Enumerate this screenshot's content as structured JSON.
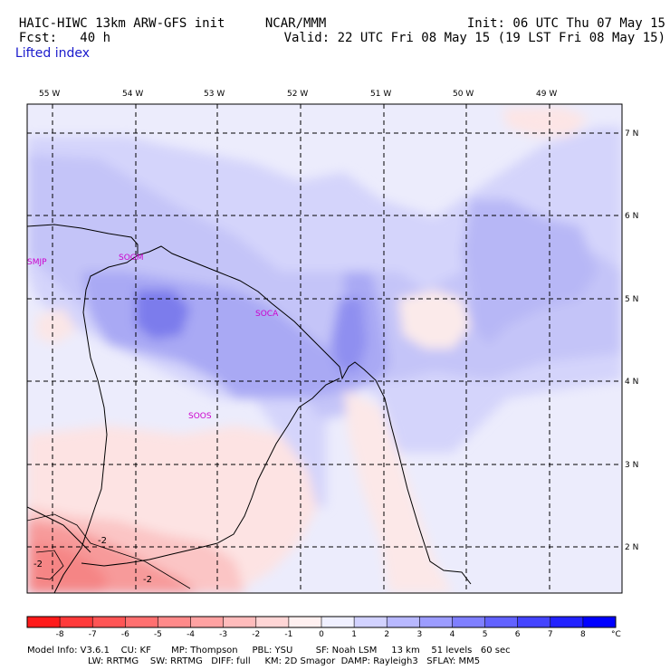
{
  "header": {
    "model_title": "HAIC-HIWC 13km ARW-GFS init",
    "org": "NCAR/MMM",
    "init": "Init: 06 UTC Thu 07 May 15",
    "fcst": "Fcst:   40 h",
    "valid": "Valid: 22 UTC Fri 08 May 15 (19 LST Fri 08 May 15)",
    "field": "Lifted index"
  },
  "map": {
    "lon_labels": [
      "55 W",
      "54 W",
      "53 W",
      "52 W",
      "51 W",
      "50 W",
      "49 W"
    ],
    "lat_labels": [
      "7 N",
      "6 N",
      "5 N",
      "4 N",
      "3 N",
      "2 N"
    ],
    "stations": [
      "SMJP",
      "SOGM",
      "SOCA",
      "SOOS"
    ],
    "contour_labels": [
      "-2",
      "-2",
      "-2"
    ]
  },
  "colorbar": {
    "ticks": [
      "-8",
      "-7",
      "-6",
      "-5",
      "-4",
      "-3",
      "-2",
      "-1",
      "0",
      "1",
      "2",
      "3",
      "4",
      "5",
      "6",
      "7",
      "8"
    ],
    "unit": "°C",
    "colors": [
      "#ff1a1a",
      "#ff3a3a",
      "#ff5555",
      "#ff7070",
      "#ff8a8a",
      "#ffa2a2",
      "#ffbcbc",
      "#ffd6d6",
      "#fff0f0",
      "#f0f0ff",
      "#d2d2ff",
      "#b8b8ff",
      "#9c9cff",
      "#7f7fff",
      "#6262ff",
      "#4444ff",
      "#2222ff",
      "#0000ff"
    ]
  },
  "footer": {
    "line1": "Model Info: V3.6.1    CU: KF       MP: Thompson     PBL: YSU        SF: Noah LSM     13 km    51 levels   60 sec",
    "line2": "LW: RRTMG    SW: RRTMG   DIFF: full     KM: 2D Smagor  DAMP: Rayleigh3   SFLAY: MM5"
  }
}
